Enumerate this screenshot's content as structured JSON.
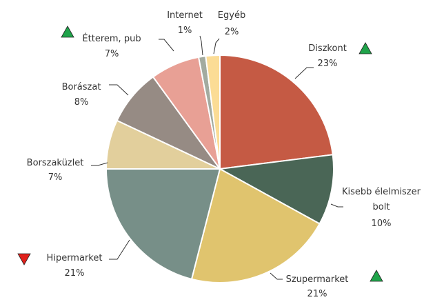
{
  "chart_data": {
    "type": "pie",
    "categories": [
      "Diszkont",
      "Kisebb élelmiszer bolt",
      "Szupermarket",
      "Hipermarket",
      "Borszaküzlet",
      "Borászat",
      "Étterem, pub",
      "Internet",
      "Egyéb"
    ],
    "values": [
      23,
      10,
      21,
      21,
      7,
      8,
      7,
      1,
      2
    ],
    "value_labels": [
      "23%",
      "10%",
      "21%",
      "21%",
      "7%",
      "8%",
      "7%",
      "1%",
      "2%"
    ],
    "colors": [
      "#c55a44",
      "#4a6656",
      "#e0c46e",
      "#778f88",
      "#e2cf9c",
      "#968b84",
      "#e8a095",
      "#a3aba0",
      "#fbdc95"
    ],
    "trend": [
      "up",
      null,
      "up",
      "down",
      null,
      null,
      "up",
      null,
      null
    ]
  }
}
